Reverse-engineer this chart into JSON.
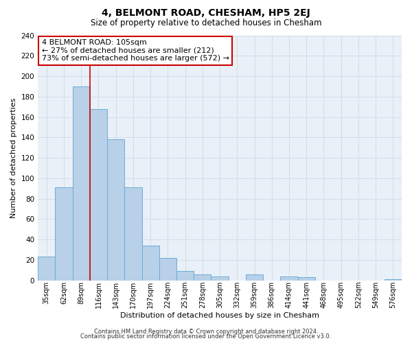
{
  "title": "4, BELMONT ROAD, CHESHAM, HP5 2EJ",
  "subtitle": "Size of property relative to detached houses in Chesham",
  "xlabel": "Distribution of detached houses by size in Chesham",
  "ylabel": "Number of detached properties",
  "bar_labels": [
    "35sqm",
    "62sqm",
    "89sqm",
    "116sqm",
    "143sqm",
    "170sqm",
    "197sqm",
    "224sqm",
    "251sqm",
    "278sqm",
    "305sqm",
    "332sqm",
    "359sqm",
    "386sqm",
    "414sqm",
    "441sqm",
    "468sqm",
    "495sqm",
    "522sqm",
    "549sqm",
    "576sqm"
  ],
  "bar_values": [
    23,
    91,
    190,
    168,
    138,
    91,
    34,
    22,
    9,
    6,
    4,
    0,
    6,
    0,
    4,
    3,
    0,
    0,
    0,
    0,
    1
  ],
  "bar_color": "#b8d0e8",
  "bar_edge_color": "#6aadd5",
  "grid_color": "#d0dde8",
  "vline_x": 2.5,
  "vline_color": "#cc0000",
  "annotation_box_text": "4 BELMONT ROAD: 105sqm\n← 27% of detached houses are smaller (212)\n73% of semi-detached houses are larger (572) →",
  "ylim": [
    0,
    240
  ],
  "yticks": [
    0,
    20,
    40,
    60,
    80,
    100,
    120,
    140,
    160,
    180,
    200,
    220,
    240
  ],
  "footer_line1": "Contains HM Land Registry data © Crown copyright and database right 2024.",
  "footer_line2": "Contains public sector information licensed under the Open Government Licence v3.0.",
  "fig_bg_color": "#ffffff",
  "plot_bg_color": "#eaf0f8"
}
